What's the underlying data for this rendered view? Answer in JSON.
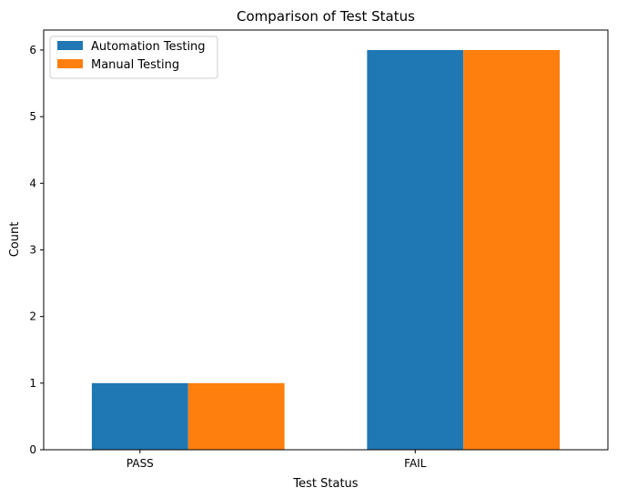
{
  "chart_data": {
    "type": "bar",
    "title": "Comparison of Test Status",
    "xlabel": "Test Status",
    "ylabel": "Count",
    "categories": [
      "PASS",
      "FAIL"
    ],
    "series": [
      {
        "name": "Automation Testing",
        "values": [
          1,
          6
        ],
        "color": "#1f77b4"
      },
      {
        "name": "Manual Testing",
        "values": [
          1,
          6
        ],
        "color": "#ff7f0e"
      }
    ],
    "ylim": [
      0,
      6.3
    ],
    "yticks": [
      0,
      1,
      2,
      3,
      4,
      5,
      6
    ],
    "grid": false,
    "legend_position": "top-left"
  }
}
